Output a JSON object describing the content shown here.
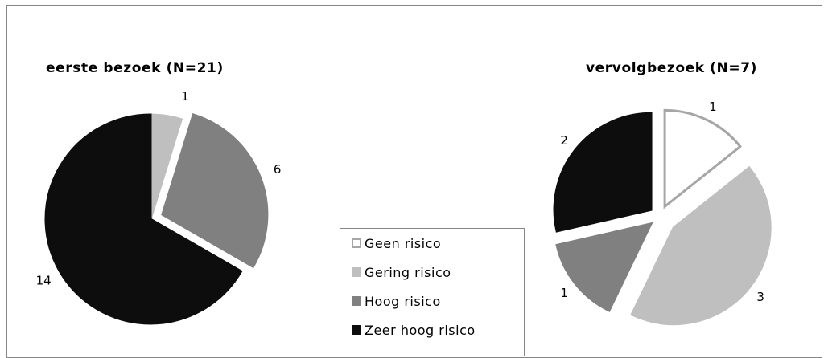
{
  "chart_data": [
    {
      "type": "pie",
      "title": "eerste bezoek (N=21)",
      "categories": [
        "Geen risico",
        "Gering risico",
        "Hoog risico",
        "Zeer hoog risico"
      ],
      "values": [
        0,
        1,
        6,
        14
      ],
      "data_labels": [
        "",
        "1",
        "6",
        "14"
      ],
      "exploded": true
    },
    {
      "type": "pie",
      "title": "vervolgbezoek (N=7)",
      "categories": [
        "Geen risico",
        "Gering risico",
        "Hoog risico",
        "Zeer hoog risico"
      ],
      "values": [
        1,
        3,
        1,
        2
      ],
      "data_labels": [
        "1",
        "3",
        "1",
        "2"
      ],
      "exploded": true
    }
  ],
  "legend": {
    "placement": "bottom-center",
    "items": [
      {
        "label": "Geen risico",
        "color": "#ffffff",
        "border": "#a6a6a6"
      },
      {
        "label": "Gering risico",
        "color": "#bfbfbf",
        "border": "#bfbfbf"
      },
      {
        "label": "Hoog risico",
        "color": "#808080",
        "border": "#808080"
      },
      {
        "label": "Zeer hoog risico",
        "color": "#0d0d0d",
        "border": "#0d0d0d"
      }
    ]
  },
  "colors": {
    "slice_fills": [
      "#ffffff",
      "#bfbfbf",
      "#808080",
      "#0d0d0d"
    ],
    "slice_strokes": [
      "#a6a6a6",
      "#bfbfbf",
      "#808080",
      "#0d0d0d"
    ],
    "border": "#868686"
  }
}
